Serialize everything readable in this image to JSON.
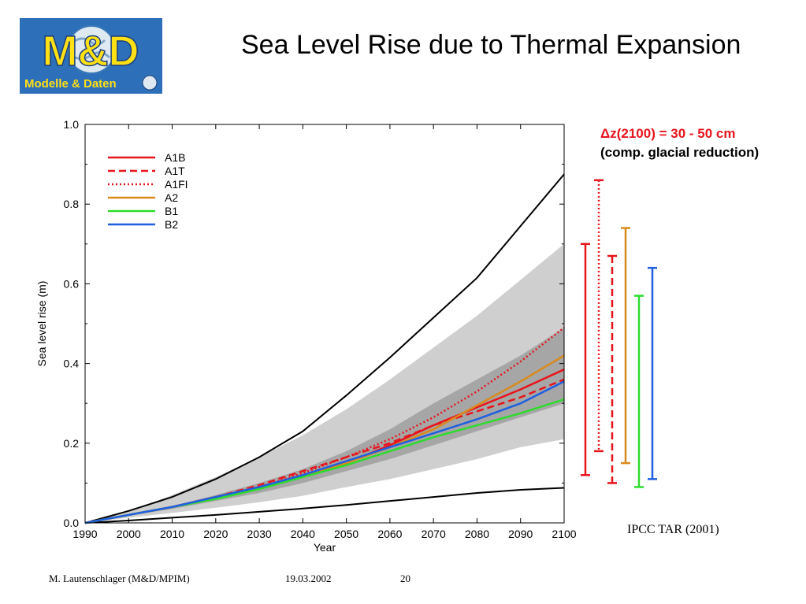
{
  "slide": {
    "title": "Sea Level Rise due to Thermal Expansion",
    "logo": {
      "text_top": "M&D",
      "text_bottom": "Modelle & Daten",
      "bg_color": "#2d6fb8",
      "text_color": "#ffe014"
    },
    "note_line1": "Δz(2100) = 30 - 50 cm",
    "note_line2": "(comp. glacial reduction)",
    "source": "IPCC TAR (2001)",
    "footer": {
      "author": "M. Lautenschlager (M&D/MPIM)",
      "date": "19.03.2002",
      "page": "20"
    }
  },
  "chart_data": {
    "type": "line",
    "xlabel": "Year",
    "ylabel": "Sea level rise (m)",
    "xlim": [
      1990,
      2100
    ],
    "ylim": [
      0.0,
      1.0
    ],
    "x_ticks": [
      1990,
      2000,
      2010,
      2020,
      2030,
      2040,
      2050,
      2060,
      2070,
      2080,
      2090,
      2100
    ],
    "y_ticks": [
      "0.0",
      "0.2",
      "0.4",
      "0.6",
      "0.8",
      "1.0"
    ],
    "legend_position": "top-left",
    "x": [
      1990,
      2000,
      2010,
      2020,
      2030,
      2040,
      2050,
      2060,
      2070,
      2080,
      2090,
      2100
    ],
    "series": [
      {
        "name": "A1B",
        "color": "#e8141c",
        "dash": "solid",
        "values": [
          0,
          0.02,
          0.04,
          0.065,
          0.09,
          0.12,
          0.15,
          0.195,
          0.245,
          0.29,
          0.335,
          0.385
        ]
      },
      {
        "name": "A1T",
        "color": "#e8141c",
        "dash": "dashed",
        "values": [
          0,
          0.02,
          0.04,
          0.065,
          0.095,
          0.13,
          0.165,
          0.2,
          0.245,
          0.28,
          0.315,
          0.36
        ]
      },
      {
        "name": "A1FI",
        "color": "#e8141c",
        "dash": "dotted",
        "values": [
          0,
          0.02,
          0.04,
          0.065,
          0.09,
          0.125,
          0.165,
          0.21,
          0.265,
          0.33,
          0.405,
          0.49
        ]
      },
      {
        "name": "A2",
        "color": "#d98a1c",
        "dash": "solid",
        "values": [
          0,
          0.02,
          0.04,
          0.065,
          0.09,
          0.12,
          0.15,
          0.19,
          0.235,
          0.295,
          0.355,
          0.42
        ]
      },
      {
        "name": "B1",
        "color": "#2ddc2d",
        "dash": "solid",
        "values": [
          0,
          0.02,
          0.04,
          0.06,
          0.085,
          0.115,
          0.145,
          0.18,
          0.215,
          0.245,
          0.275,
          0.31
        ]
      },
      {
        "name": "B2",
        "color": "#1f5fe0",
        "dash": "solid",
        "values": [
          0,
          0.02,
          0.04,
          0.065,
          0.09,
          0.12,
          0.155,
          0.19,
          0.225,
          0.26,
          0.3,
          0.355
        ]
      }
    ],
    "envelope_outer_upper": [
      0,
      0.028,
      0.07,
      0.115,
      0.165,
      0.22,
      0.285,
      0.36,
      0.44,
      0.52,
      0.61,
      0.7
    ],
    "envelope_outer_lower": [
      0,
      0.013,
      0.025,
      0.038,
      0.052,
      0.068,
      0.09,
      0.11,
      0.135,
      0.16,
      0.19,
      0.21
    ],
    "envelope_inner_upper": [
      0,
      0.02,
      0.042,
      0.07,
      0.1,
      0.135,
      0.18,
      0.235,
      0.3,
      0.36,
      0.42,
      0.49
    ],
    "envelope_inner_lower": [
      0,
      0.018,
      0.035,
      0.055,
      0.075,
      0.1,
      0.13,
      0.16,
      0.195,
      0.23,
      0.265,
      0.3
    ],
    "bound_upper": [
      0,
      0.03,
      0.065,
      0.11,
      0.165,
      0.23,
      0.32,
      0.415,
      0.515,
      0.615,
      0.745,
      0.875
    ],
    "bound_lower": [
      0,
      0.006,
      0.013,
      0.02,
      0.028,
      0.036,
      0.045,
      0.055,
      0.065,
      0.075,
      0.083,
      0.088
    ],
    "range_bars": [
      {
        "name": "A1B",
        "color": "#e8141c",
        "dash": "solid",
        "min": 0.12,
        "max": 0.7
      },
      {
        "name": "A1FI",
        "color": "#e8141c",
        "dash": "dotted",
        "min": 0.18,
        "max": 0.86
      },
      {
        "name": "A1T",
        "color": "#e8141c",
        "dash": "dashed",
        "min": 0.1,
        "max": 0.67
      },
      {
        "name": "A2",
        "color": "#d98a1c",
        "dash": "solid",
        "min": 0.15,
        "max": 0.74
      },
      {
        "name": "B1",
        "color": "#2ddc2d",
        "dash": "solid",
        "min": 0.09,
        "max": 0.57
      },
      {
        "name": "B2",
        "color": "#1f5fe0",
        "dash": "solid",
        "min": 0.11,
        "max": 0.64
      }
    ]
  }
}
